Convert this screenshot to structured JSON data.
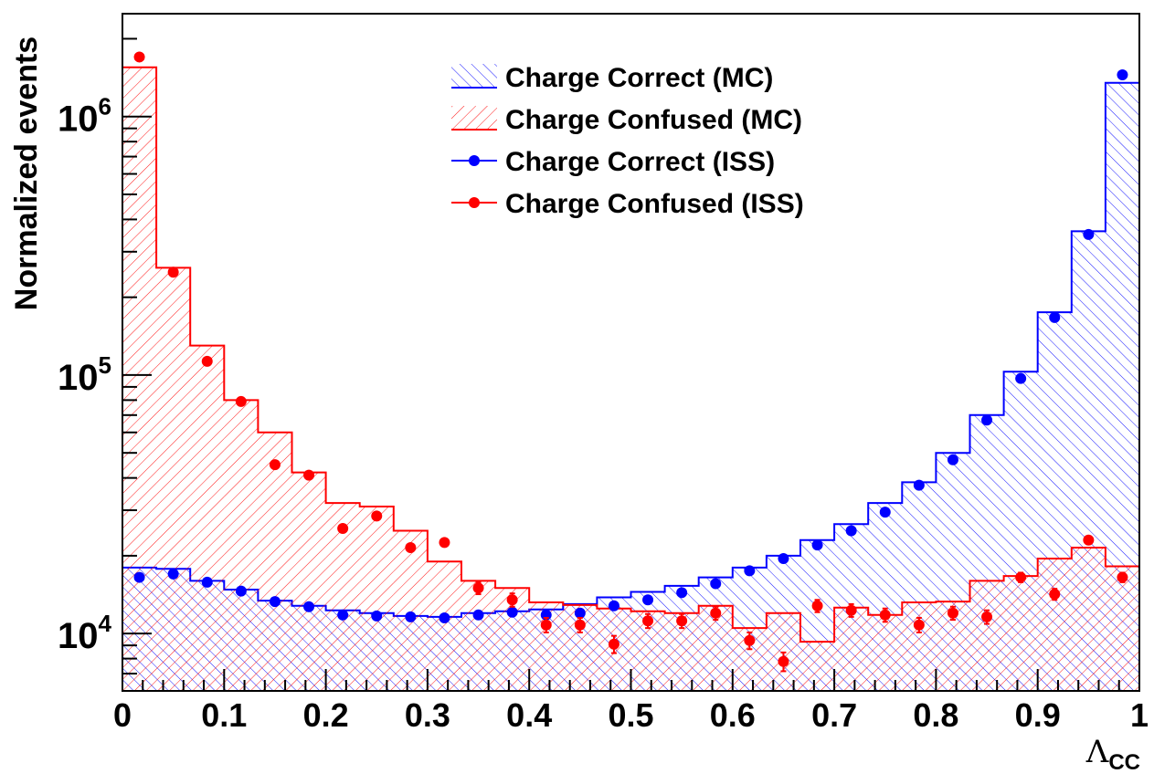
{
  "chart_data": {
    "type": "histogram",
    "xlabel": "Λ",
    "xlabel_sub": "CC",
    "ylabel": "Normalized events",
    "xlim": [
      0,
      1
    ],
    "ylim": [
      6000,
      2500000
    ],
    "yscale": "log",
    "x_ticks": [
      "0",
      "0.1",
      "0.2",
      "0.3",
      "0.4",
      "0.5",
      "0.6",
      "0.7",
      "0.8",
      "0.9",
      "1"
    ],
    "y_ticks": [
      {
        "base": "10",
        "exp": "4",
        "value": 10000
      },
      {
        "base": "10",
        "exp": "5",
        "value": 100000
      },
      {
        "base": "10",
        "exp": "6",
        "value": 1000000
      }
    ],
    "bins": 30,
    "legend_position": "top-center",
    "colors": {
      "correct": "#0000ff",
      "confused": "#ff0000"
    },
    "series": [
      {
        "name": "Charge Correct (MC)",
        "kind": "hatched-histogram",
        "color": "#0000ff",
        "values": [
          18000,
          17800,
          16000,
          14800,
          13400,
          12800,
          12300,
          12000,
          11700,
          11600,
          12000,
          12200,
          12400,
          13000,
          13800,
          14500,
          15300,
          16500,
          18000,
          20000,
          23000,
          26500,
          32000,
          38500,
          50000,
          70000,
          103000,
          175000,
          360000,
          1350000
        ]
      },
      {
        "name": "Charge Confused (MC)",
        "kind": "hatched-histogram",
        "color": "#ff0000",
        "values": [
          1550000,
          260000,
          130000,
          80000,
          60000,
          42000,
          32000,
          31000,
          25000,
          19000,
          16000,
          15000,
          13200,
          12900,
          12500,
          12200,
          12000,
          12800,
          10500,
          12000,
          9300,
          12600,
          11800,
          13200,
          13300,
          16000,
          16700,
          19500,
          21500,
          18200
        ]
      },
      {
        "name": "Charge Correct (ISS)",
        "kind": "points",
        "color": "#0000ff",
        "values": [
          16500,
          17000,
          15800,
          14600,
          13300,
          12700,
          11800,
          11700,
          11600,
          11500,
          11800,
          12100,
          11800,
          12000,
          12800,
          13500,
          14400,
          15600,
          17500,
          19500,
          22000,
          25000,
          29500,
          37500,
          47000,
          67000,
          97000,
          167000,
          350000,
          1450000
        ],
        "errors": [
          0,
          0,
          0,
          0,
          0,
          0,
          0,
          0,
          0,
          0,
          0,
          0,
          0,
          0,
          0,
          0,
          0,
          0,
          0,
          0,
          0,
          0,
          0,
          0,
          0,
          0,
          0,
          0,
          0,
          0
        ]
      },
      {
        "name": "Charge Confused (ISS)",
        "kind": "points",
        "color": "#ff0000",
        "values": [
          1700000,
          250000,
          113000,
          79000,
          45000,
          41000,
          25500,
          28500,
          21500,
          22500,
          15000,
          13500,
          10800,
          10800,
          9100,
          11200,
          11200,
          12000,
          9400,
          7800,
          12800,
          12300,
          11800,
          10800,
          12000,
          11600,
          16500,
          14200,
          23000,
          16500
        ],
        "errors": [
          0,
          0,
          0,
          0,
          0,
          0,
          0,
          0,
          0,
          0,
          800,
          800,
          700,
          700,
          700,
          700,
          700,
          700,
          700,
          650,
          700,
          700,
          700,
          700,
          700,
          700,
          700,
          700,
          800,
          700
        ]
      }
    ]
  }
}
